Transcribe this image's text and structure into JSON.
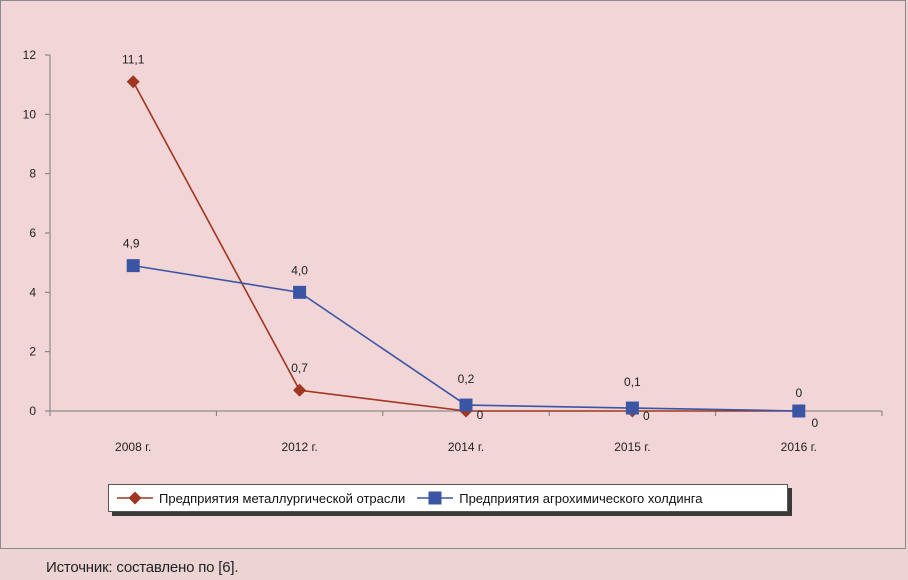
{
  "chart_data": {
    "type": "line",
    "categories": [
      "2008 г.",
      "2012 г.",
      "2014 г.",
      "2015 г.",
      "2016 г."
    ],
    "ylim": [
      0,
      12
    ],
    "yticks": [
      0,
      2,
      4,
      6,
      8,
      10,
      12
    ],
    "grid": false,
    "legend_position": "bottom",
    "series": [
      {
        "name": "Предприятия металлургической отрасли",
        "color": "#a0361f",
        "marker": "diamond",
        "values": [
          11.1,
          0.7,
          0,
          0,
          0
        ],
        "labels": [
          "11,1",
          "0,7",
          "0",
          "0",
          "0"
        ]
      },
      {
        "name": "Предприятия агрохимического холдинга",
        "color": "#3a55a4",
        "marker": "square",
        "values": [
          4.9,
          4.0,
          0.2,
          0.1,
          0
        ],
        "labels": [
          "4,9",
          "4,0",
          "0,2",
          "0,1",
          "0"
        ]
      }
    ]
  },
  "source_note": "Источник: составлено по [6]."
}
